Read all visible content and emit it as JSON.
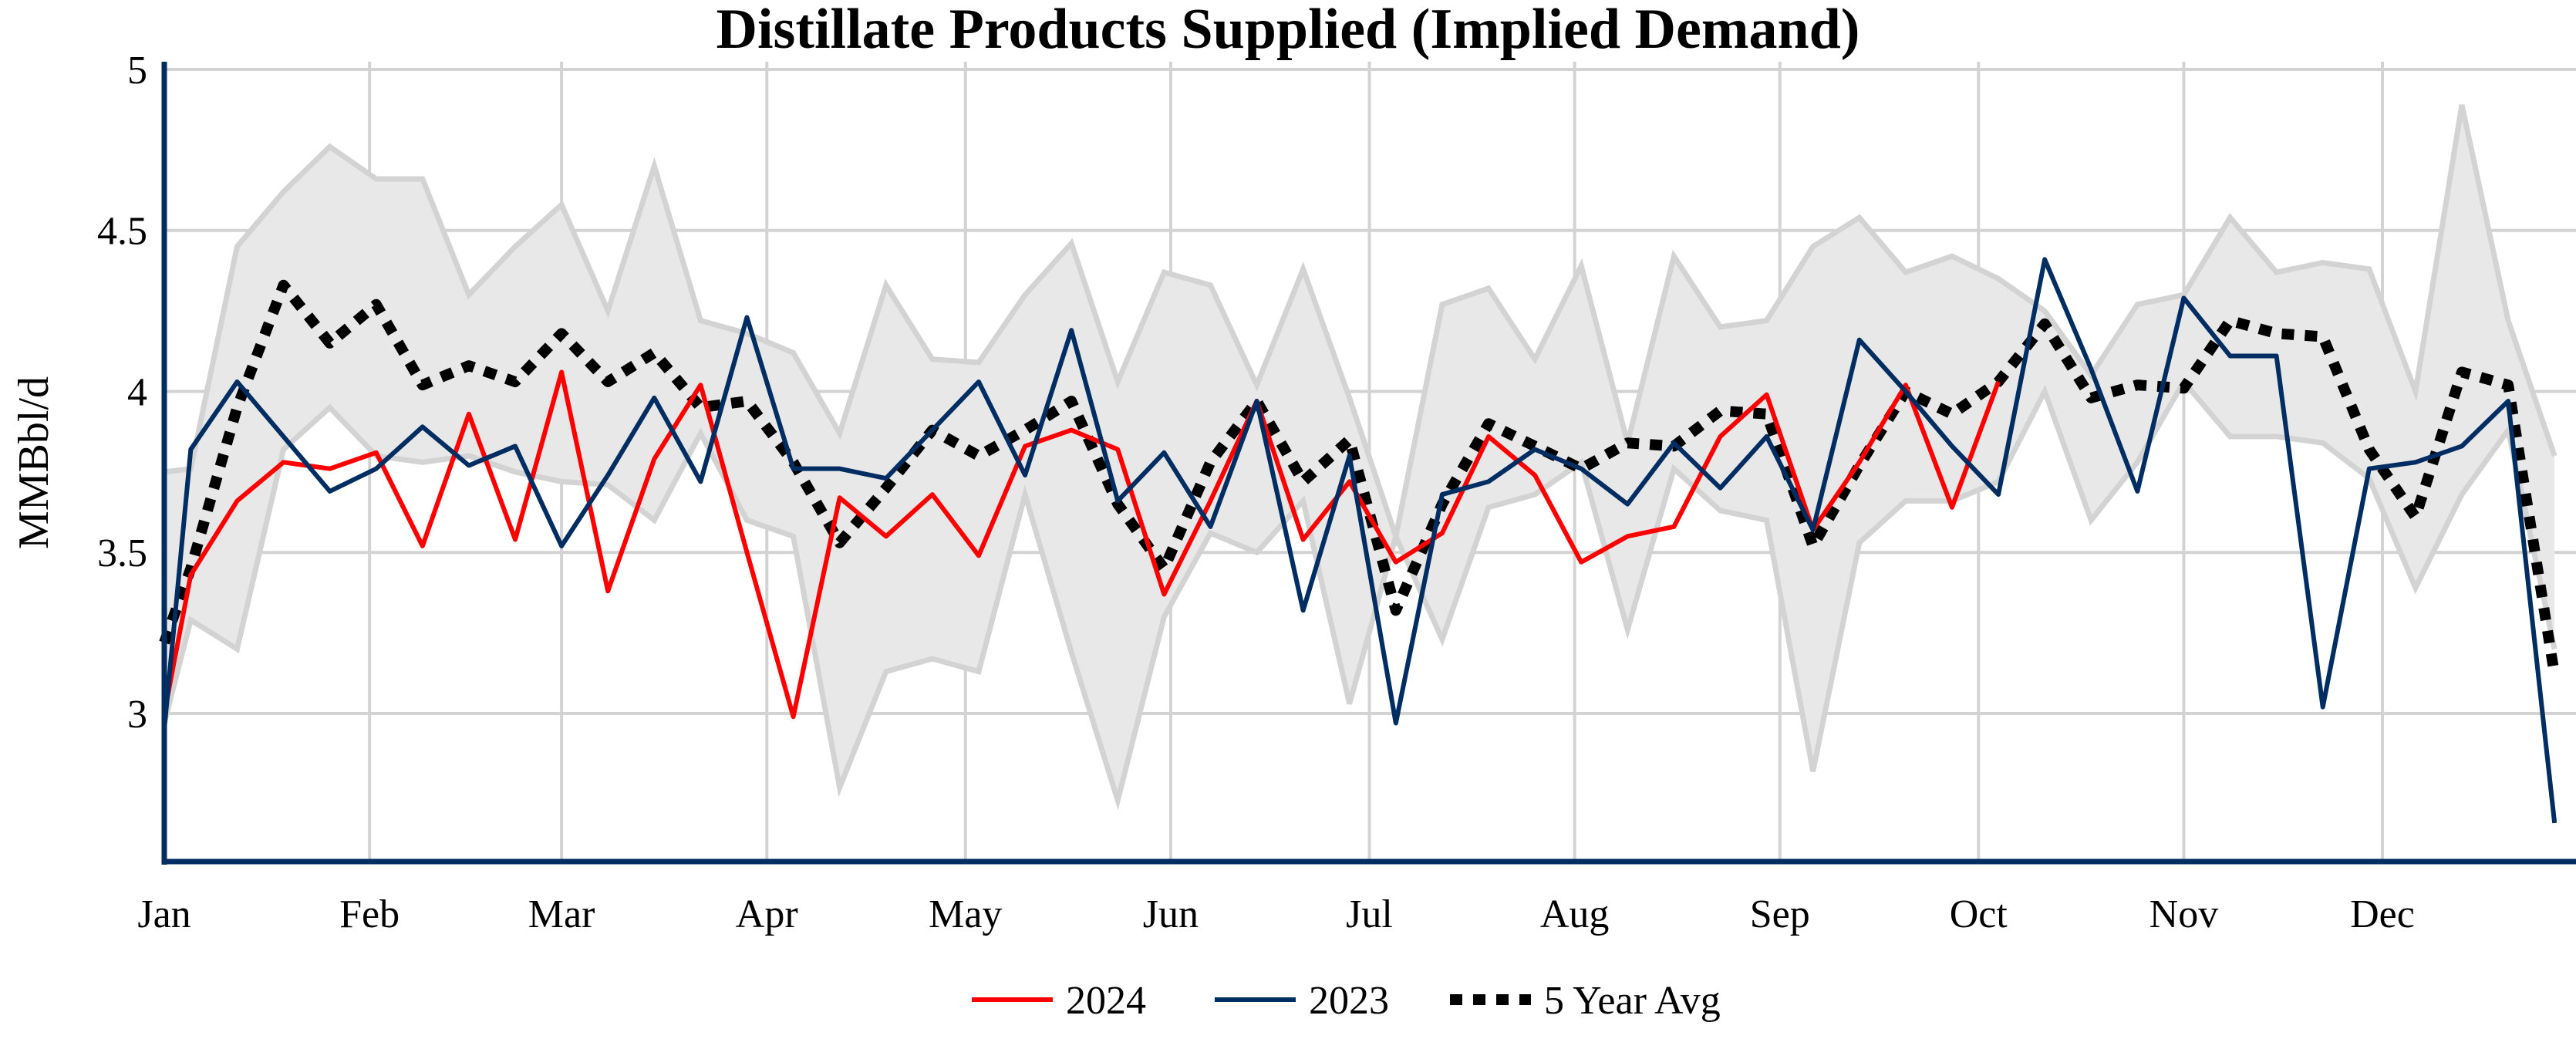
{
  "chart_data": {
    "type": "line",
    "title": "Distillate Products Supplied (Implied Demand)",
    "xlabel": "",
    "ylabel": "MMBbl/d",
    "ylim": [
      2.54,
      5
    ],
    "yticks": [
      3,
      3.5,
      4,
      4.5,
      5
    ],
    "ytick_labels": [
      "3",
      "3.5",
      "4",
      "4.5",
      "5"
    ],
    "xtick_labels": [
      "Jan",
      "Feb",
      "Mar",
      "Apr",
      "May",
      "Jun",
      "Jul",
      "Aug",
      "Sep",
      "Oct",
      "Nov",
      "Dec"
    ],
    "xtick_dates": [
      "01-01",
      "02-01",
      "03-01",
      "04-01",
      "05-01",
      "06-01",
      "07-01",
      "08-01",
      "09-01",
      "10-01",
      "11-01",
      "12-01"
    ],
    "grid": true,
    "legend_placement": "bottom-center",
    "x": [
      "01-01",
      "01-05",
      "01-12",
      "01-19",
      "01-26",
      "02-02",
      "02-09",
      "02-16",
      "02-23",
      "03-01",
      "03-08",
      "03-15",
      "03-22",
      "03-29",
      "04-05",
      "04-12",
      "04-19",
      "04-26",
      "05-03",
      "05-10",
      "05-17",
      "05-24",
      "05-31",
      "06-07",
      "06-14",
      "06-21",
      "06-28",
      "07-05",
      "07-12",
      "07-19",
      "07-26",
      "08-02",
      "08-09",
      "08-16",
      "08-23",
      "08-30",
      "09-06",
      "09-13",
      "09-20",
      "09-27",
      "10-04",
      "10-11",
      "10-18",
      "10-25",
      "11-01",
      "11-08",
      "11-15",
      "11-22",
      "11-29",
      "12-06",
      "12-13",
      "12-20",
      "12-27"
    ],
    "range_band": {
      "max": [
        3.75,
        3.76,
        4.45,
        4.62,
        4.76,
        4.66,
        4.66,
        4.3,
        4.45,
        4.58,
        4.25,
        4.7,
        4.22,
        4.18,
        4.12,
        3.87,
        4.33,
        4.1,
        4.09,
        4.3,
        4.46,
        4.03,
        4.37,
        4.33,
        4.02,
        4.38,
        3.98,
        3.55,
        4.27,
        4.32,
        4.1,
        4.39,
        3.84,
        4.42,
        4.2,
        4.22,
        4.45,
        4.54,
        4.37,
        4.42,
        4.35,
        4.25,
        4.05,
        4.27,
        4.3,
        4.54,
        4.37,
        4.4,
        4.38,
        4.0,
        4.89,
        4.22,
        3.8
      ],
      "min": [
        2.97,
        3.29,
        3.2,
        3.82,
        3.95,
        3.8,
        3.78,
        3.8,
        3.75,
        3.72,
        3.71,
        3.6,
        3.87,
        3.6,
        3.55,
        2.77,
        3.13,
        3.17,
        3.13,
        3.68,
        3.19,
        2.73,
        3.3,
        3.56,
        3.5,
        3.66,
        3.03,
        3.55,
        3.23,
        3.64,
        3.68,
        3.78,
        3.26,
        3.76,
        3.63,
        3.6,
        2.82,
        3.53,
        3.66,
        3.66,
        3.72,
        4.0,
        3.6,
        3.78,
        4.03,
        3.86,
        3.86,
        3.84,
        3.73,
        3.39,
        3.68,
        3.88,
        3.2
      ]
    },
    "series": [
      {
        "name": "2024",
        "color": "#ff0000",
        "dash": "solid",
        "values": [
          3.0,
          3.43,
          3.66,
          3.78,
          3.76,
          3.81,
          3.52,
          3.93,
          3.54,
          4.06,
          3.38,
          3.79,
          4.02,
          3.5,
          2.99,
          3.67,
          3.55,
          3.68,
          3.49,
          3.83,
          3.88,
          3.82,
          3.37,
          3.66,
          3.97,
          3.54,
          3.72,
          3.47,
          3.56,
          3.86,
          3.74,
          3.47,
          3.55,
          3.58,
          3.86,
          3.99,
          3.57,
          3.78,
          4.02,
          3.64,
          4.03,
          null,
          null,
          null,
          null,
          null,
          null,
          null,
          null,
          null,
          null,
          null,
          null
        ]
      },
      {
        "name": "2023",
        "color": "#002d62",
        "dash": "solid",
        "values": [
          2.95,
          3.82,
          4.03,
          3.86,
          3.69,
          3.76,
          3.89,
          3.77,
          3.83,
          3.52,
          3.74,
          3.98,
          3.72,
          4.23,
          3.76,
          3.76,
          3.73,
          3.88,
          4.03,
          3.74,
          4.19,
          3.66,
          3.81,
          3.58,
          3.97,
          3.32,
          3.8,
          2.97,
          3.68,
          3.72,
          3.82,
          3.76,
          3.65,
          3.84,
          3.7,
          3.86,
          3.57,
          4.16,
          4.0,
          3.83,
          3.68,
          4.41,
          4.07,
          3.69,
          4.29,
          4.11,
          4.11,
          3.02,
          3.76,
          3.78,
          3.83,
          3.97,
          2.66
        ]
      },
      {
        "name": "5 Year Avg",
        "color": "#000000",
        "dash": "dotted",
        "values": [
          3.22,
          3.45,
          3.95,
          4.33,
          4.15,
          4.27,
          4.02,
          4.08,
          4.03,
          4.18,
          4.03,
          4.12,
          3.95,
          3.97,
          3.78,
          3.53,
          3.7,
          3.88,
          3.8,
          3.88,
          3.97,
          3.65,
          3.45,
          3.78,
          3.97,
          3.72,
          3.85,
          3.32,
          3.65,
          3.9,
          3.83,
          3.76,
          3.84,
          3.83,
          3.94,
          3.93,
          3.52,
          3.77,
          4.0,
          3.93,
          4.03,
          4.21,
          3.98,
          4.02,
          4.01,
          4.22,
          4.18,
          4.17,
          3.82,
          3.61,
          4.06,
          4.02,
          3.12
        ]
      }
    ],
    "colors": {
      "band_fill": "#e8e8e8",
      "band_edge": "#d3d3d3",
      "grid": "#d3d3d3",
      "axis": "#002d62"
    }
  }
}
